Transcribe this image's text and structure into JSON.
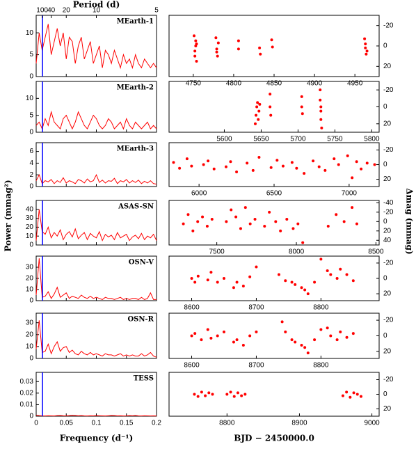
{
  "chart_data": [
    {
      "type": "line",
      "label": "MEarth-1",
      "color": "#ff0000",
      "marker_x": 0.0105,
      "marker_color": "#0000ff",
      "top_axis_label": "Period (d)",
      "top_ticks": [
        100,
        40,
        20,
        10,
        5
      ],
      "x": [
        0,
        0.005,
        0.01,
        0.015,
        0.02,
        0.025,
        0.03,
        0.035,
        0.04,
        0.045,
        0.05,
        0.055,
        0.06,
        0.065,
        0.07,
        0.075,
        0.08,
        0.085,
        0.09,
        0.095,
        0.1,
        0.105,
        0.11,
        0.115,
        0.12,
        0.125,
        0.13,
        0.135,
        0.14,
        0.145,
        0.15,
        0.155,
        0.16,
        0.165,
        0.17,
        0.175,
        0.18,
        0.185,
        0.19,
        0.195,
        0.2
      ],
      "values": [
        3,
        10,
        6,
        9,
        12,
        5,
        8,
        11,
        7,
        10,
        4,
        9,
        8,
        3,
        7,
        9,
        4,
        6,
        8,
        3,
        5,
        7,
        2,
        6,
        5,
        3,
        6,
        4,
        2,
        5,
        3,
        4,
        2,
        5,
        3,
        2,
        4,
        3,
        2,
        3,
        2
      ],
      "xlim": [
        0,
        0.2
      ],
      "xticks": [
        0,
        0.05,
        0.1,
        0.15,
        0.2
      ],
      "ylim": [
        0,
        14
      ],
      "yticks": [
        0,
        5,
        10
      ]
    },
    {
      "type": "line",
      "label": "MEarth-2",
      "color": "#ff0000",
      "marker_x": 0.0105,
      "marker_color": "#0000ff",
      "x": [
        0,
        0.005,
        0.01,
        0.015,
        0.02,
        0.025,
        0.03,
        0.035,
        0.04,
        0.045,
        0.05,
        0.055,
        0.06,
        0.065,
        0.07,
        0.075,
        0.08,
        0.085,
        0.09,
        0.095,
        0.1,
        0.105,
        0.11,
        0.115,
        0.12,
        0.125,
        0.13,
        0.135,
        0.14,
        0.145,
        0.15,
        0.155,
        0.16,
        0.165,
        0.17,
        0.175,
        0.18,
        0.185,
        0.19,
        0.195,
        0.2
      ],
      "values": [
        2,
        3,
        1,
        4,
        2,
        6,
        3,
        2,
        1,
        4,
        5,
        3,
        1,
        3,
        6,
        4,
        2,
        1,
        3,
        5,
        4,
        2,
        1,
        2,
        4,
        3,
        1,
        2,
        3,
        1,
        4,
        2,
        1,
        3,
        2,
        1,
        2,
        3,
        1,
        2,
        1
      ],
      "xlim": [
        0,
        0.2
      ],
      "xticks": [
        0,
        0.05,
        0.1,
        0.15,
        0.2
      ],
      "ylim": [
        0,
        15
      ],
      "yticks": [
        0,
        5,
        10
      ]
    },
    {
      "type": "line",
      "label": "MEarth-3",
      "color": "#ff0000",
      "marker_x": 0.0105,
      "marker_color": "#0000ff",
      "x": [
        0,
        0.005,
        0.01,
        0.015,
        0.02,
        0.025,
        0.03,
        0.035,
        0.04,
        0.045,
        0.05,
        0.055,
        0.06,
        0.065,
        0.07,
        0.075,
        0.08,
        0.085,
        0.09,
        0.095,
        0.1,
        0.105,
        0.11,
        0.115,
        0.12,
        0.125,
        0.13,
        0.135,
        0.14,
        0.145,
        0.15,
        0.155,
        0.16,
        0.165,
        0.17,
        0.175,
        0.18,
        0.185,
        0.19,
        0.195,
        0.2
      ],
      "values": [
        1,
        2,
        0.5,
        1,
        0.8,
        1.2,
        0.5,
        1,
        0.7,
        1.5,
        0.6,
        1,
        0.8,
        0.5,
        1.2,
        1,
        0.6,
        1.3,
        0.8,
        1,
        2,
        0.7,
        1.1,
        0.6,
        1,
        0.9,
        1.4,
        0.5,
        1,
        0.8,
        1.2,
        0.6,
        1,
        0.7,
        1.1,
        0.5,
        0.9,
        0.6,
        1,
        0.5,
        0.4
      ],
      "xlim": [
        0,
        0.2
      ],
      "xticks": [
        0,
        0.05,
        0.1,
        0.15,
        0.2
      ],
      "ylim": [
        0,
        7.5
      ],
      "yticks": [
        0,
        2,
        4,
        6
      ]
    },
    {
      "type": "line",
      "label": "ASAS-SN",
      "color": "#ff0000",
      "marker_x": 0.0105,
      "marker_color": "#0000ff",
      "ylabel": "Power (mmag²)",
      "x": [
        0,
        0.005,
        0.01,
        0.015,
        0.02,
        0.025,
        0.03,
        0.035,
        0.04,
        0.045,
        0.05,
        0.055,
        0.06,
        0.065,
        0.07,
        0.075,
        0.08,
        0.085,
        0.09,
        0.095,
        0.1,
        0.105,
        0.11,
        0.115,
        0.12,
        0.125,
        0.13,
        0.135,
        0.14,
        0.145,
        0.15,
        0.155,
        0.16,
        0.165,
        0.17,
        0.175,
        0.18,
        0.185,
        0.19,
        0.195,
        0.2
      ],
      "values": [
        5,
        40,
        15,
        12,
        20,
        8,
        14,
        10,
        17,
        6,
        12,
        15,
        9,
        18,
        7,
        11,
        14,
        6,
        13,
        10,
        8,
        15,
        5,
        12,
        9,
        11,
        6,
        14,
        8,
        10,
        12,
        5,
        9,
        11,
        7,
        13,
        6,
        10,
        8,
        12,
        5
      ],
      "xlim": [
        0,
        0.2
      ],
      "xticks": [
        0,
        0.05,
        0.1,
        0.15,
        0.2
      ],
      "ylim": [
        0,
        50
      ],
      "yticks": [
        0,
        10,
        20,
        30,
        40
      ]
    },
    {
      "type": "line",
      "label": "OSN-V",
      "color": "#ff0000",
      "marker_x": 0.0105,
      "marker_color": "#0000ff",
      "x": [
        0,
        0.005,
        0.01,
        0.015,
        0.02,
        0.025,
        0.03,
        0.035,
        0.04,
        0.045,
        0.05,
        0.055,
        0.06,
        0.065,
        0.07,
        0.075,
        0.08,
        0.085,
        0.09,
        0.095,
        0.1,
        0.105,
        0.11,
        0.115,
        0.12,
        0.125,
        0.13,
        0.135,
        0.14,
        0.145,
        0.15,
        0.155,
        0.16,
        0.165,
        0.17,
        0.175,
        0.18,
        0.185,
        0.19,
        0.195,
        0.2
      ],
      "values": [
        5,
        38,
        3,
        4,
        8,
        2,
        6,
        12,
        3,
        5,
        7,
        2,
        4,
        3,
        2,
        5,
        3,
        2,
        4,
        2,
        3,
        2,
        1,
        3,
        2,
        2,
        1,
        2,
        3,
        1,
        2,
        1,
        2,
        2,
        1,
        3,
        1,
        2,
        7,
        1,
        1
      ],
      "xlim": [
        0,
        0.2
      ],
      "xticks": [
        0,
        0.05,
        0.1,
        0.15,
        0.2
      ],
      "ylim": [
        0,
        40
      ],
      "yticks": [
        0,
        10,
        20,
        30
      ]
    },
    {
      "type": "line",
      "label": "OSN-R",
      "color": "#ff0000",
      "marker_x": 0.0105,
      "marker_color": "#0000ff",
      "x": [
        0,
        0.005,
        0.01,
        0.015,
        0.02,
        0.025,
        0.03,
        0.035,
        0.04,
        0.045,
        0.05,
        0.055,
        0.06,
        0.065,
        0.07,
        0.075,
        0.08,
        0.085,
        0.09,
        0.095,
        0.1,
        0.105,
        0.11,
        0.115,
        0.12,
        0.125,
        0.13,
        0.135,
        0.14,
        0.145,
        0.15,
        0.155,
        0.16,
        0.165,
        0.17,
        0.175,
        0.18,
        0.185,
        0.19,
        0.195,
        0.2
      ],
      "values": [
        8,
        32,
        5,
        6,
        12,
        4,
        10,
        14,
        6,
        9,
        10,
        5,
        7,
        4,
        3,
        6,
        4,
        3,
        5,
        3,
        4,
        3,
        2,
        4,
        3,
        3,
        2,
        3,
        4,
        2,
        3,
        2,
        3,
        2,
        2,
        4,
        2,
        3,
        5,
        2,
        1
      ],
      "xlim": [
        0,
        0.2
      ],
      "xticks": [
        0,
        0.05,
        0.1,
        0.15,
        0.2
      ],
      "ylim": [
        0,
        38
      ],
      "yticks": [
        0,
        10,
        20,
        30
      ]
    },
    {
      "type": "line",
      "label": "TESS",
      "color": "#ff0000",
      "marker_x": 0.0105,
      "marker_color": "#0000ff",
      "xlabel": "Frequency (d⁻¹)",
      "x": [
        0,
        0.005,
        0.01,
        0.015,
        0.02,
        0.025,
        0.03,
        0.035,
        0.04,
        0.045,
        0.05,
        0.055,
        0.06,
        0.065,
        0.07,
        0.075,
        0.08,
        0.085,
        0.09,
        0.095,
        0.1,
        0.105,
        0.11,
        0.115,
        0.12,
        0.125,
        0.13,
        0.135,
        0.14,
        0.145,
        0.15,
        0.155,
        0.16,
        0.165,
        0.17,
        0.175,
        0.18,
        0.185,
        0.19,
        0.195,
        0.2
      ],
      "values": [
        0.001,
        0.0005,
        0.0003,
        0.0002,
        0.0004,
        0.0003,
        0.0002,
        0.0005,
        0.0006,
        0.0004,
        0.0003,
        0.0005,
        0.0008,
        0.0006,
        0.0004,
        0.0005,
        0.0003,
        0.0002,
        0.0004,
        0.0003,
        0.0005,
        0.0004,
        0.0003,
        0.0002,
        0.0004,
        0.0006,
        0.0005,
        0.0003,
        0.0004,
        0.0002,
        0.0003,
        0.0005,
        0.0004,
        0.0006,
        0.0003,
        0.0002,
        0.0004,
        0.0003,
        0.0002,
        0.0003,
        0.0002
      ],
      "xlim": [
        0,
        0.2
      ],
      "xticks": [
        0,
        0.05,
        0.1,
        0.15,
        0.2
      ],
      "ylim": [
        0,
        0.038
      ],
      "yticks": [
        0,
        0.01,
        0.02,
        0.03
      ]
    },
    {
      "type": "scatter",
      "color": "#ff0000",
      "x": [
        4751,
        4752,
        4753,
        4754,
        4753,
        4752,
        4754,
        4778,
        4779,
        4780,
        4781,
        4779,
        4806,
        4806,
        4832,
        4833,
        4847,
        4848,
        4962,
        4963,
        4964,
        4963,
        4965
      ],
      "values": [
        -10,
        5,
        -5,
        15,
        0,
        10,
        -2,
        -8,
        3,
        10,
        -3,
        6,
        -5,
        3,
        2,
        8,
        -6,
        1,
        -7,
        2,
        8,
        -2,
        5
      ],
      "xlim": [
        4720,
        4980
      ],
      "xticks": [
        4750,
        4800,
        4850,
        4900,
        4950
      ],
      "ylim": [
        30,
        -30
      ],
      "yticks": [
        -20,
        0,
        20
      ]
    },
    {
      "type": "scatter",
      "color": "#ff0000",
      "x": [
        5642,
        5643,
        5644,
        5645,
        5646,
        5647,
        5648,
        5662,
        5662,
        5663,
        5705,
        5705,
        5706,
        5730,
        5730,
        5731,
        5731,
        5732,
        5731
      ],
      "values": [
        20,
        10,
        0,
        -5,
        15,
        5,
        -3,
        -15,
        0,
        10,
        -12,
        0,
        8,
        -20,
        -8,
        5,
        15,
        25,
        0
      ],
      "xlim": [
        5525,
        5810
      ],
      "xticks": [
        5600,
        5650,
        5700,
        5750,
        5800
      ],
      "ylim": [
        30,
        -30
      ],
      "yticks": [
        -20,
        0,
        20
      ]
    },
    {
      "type": "scatter",
      "color": "#ff0000",
      "x": [
        5830,
        5870,
        5920,
        5950,
        6030,
        6060,
        6100,
        6180,
        6210,
        6250,
        6320,
        6360,
        6400,
        6480,
        6520,
        6560,
        6620,
        6650,
        6700,
        6760,
        6800,
        6840,
        6900,
        6930,
        6990,
        7020,
        7050,
        7080,
        7120,
        7170
      ],
      "values": [
        -3,
        5,
        -8,
        2,
        0,
        -5,
        6,
        3,
        -4,
        10,
        -2,
        8,
        -10,
        4,
        -6,
        2,
        -3,
        5,
        12,
        -5,
        3,
        8,
        -8,
        0,
        -12,
        18,
        -4,
        6,
        -2,
        0
      ],
      "xlim": [
        5800,
        7200
      ],
      "xticks": [
        6000,
        6500,
        7000
      ],
      "ylim": [
        30,
        -30
      ],
      "yticks": [
        -20,
        0,
        20
      ]
    },
    {
      "type": "scatter",
      "color": "#ff0000",
      "ylabel": "Δmag (mmag)",
      "x": [
        7290,
        7320,
        7350,
        7380,
        7410,
        7440,
        7470,
        7560,
        7590,
        7620,
        7650,
        7680,
        7710,
        7740,
        7800,
        7830,
        7870,
        7900,
        7940,
        7980,
        8010,
        8040,
        8200,
        8250,
        8300,
        8350,
        8380
      ],
      "values": [
        5,
        -15,
        20,
        0,
        -10,
        10,
        -5,
        0,
        -25,
        -10,
        15,
        -30,
        5,
        -5,
        10,
        -20,
        0,
        20,
        -5,
        15,
        5,
        45,
        10,
        -15,
        0,
        -30,
        5
      ],
      "xlim": [
        7200,
        8520
      ],
      "xticks": [
        7500,
        8000,
        8500
      ],
      "ylim": [
        50,
        -45
      ],
      "yticks": [
        -40,
        -20,
        0,
        20,
        40
      ]
    },
    {
      "type": "scatter",
      "color": "#ff0000",
      "x": [
        8600,
        8605,
        8610,
        8625,
        8630,
        8640,
        8650,
        8665,
        8670,
        8680,
        8690,
        8700,
        8735,
        8745,
        8755,
        8760,
        8770,
        8775,
        8780,
        8790,
        8800,
        8810,
        8815,
        8825,
        8830,
        8840,
        8850
      ],
      "values": [
        0,
        5,
        -3,
        2,
        -8,
        5,
        0,
        12,
        5,
        10,
        -2,
        -15,
        -5,
        3,
        5,
        8,
        12,
        15,
        20,
        5,
        -25,
        -10,
        -5,
        0,
        -12,
        -5,
        3
      ],
      "xlim": [
        8565,
        8890
      ],
      "xticks": [
        8600,
        8700,
        8800
      ],
      "ylim": [
        29,
        -29
      ],
      "yticks": [
        -20,
        0,
        20
      ]
    },
    {
      "type": "scatter",
      "color": "#ff0000",
      "x": [
        8600,
        8605,
        8615,
        8625,
        8630,
        8640,
        8650,
        8665,
        8670,
        8680,
        8690,
        8700,
        8740,
        8745,
        8755,
        8760,
        8770,
        8775,
        8780,
        8790,
        8800,
        8810,
        8815,
        8825,
        8830,
        8840,
        8850
      ],
      "values": [
        0,
        -3,
        5,
        -8,
        3,
        0,
        -5,
        8,
        5,
        12,
        0,
        -5,
        -18,
        -5,
        5,
        8,
        12,
        15,
        22,
        5,
        -8,
        -10,
        0,
        5,
        -5,
        2,
        -3
      ],
      "xlim": [
        8565,
        8890
      ],
      "xticks": [
        8600,
        8700,
        8800
      ],
      "ylim": [
        29,
        -29
      ],
      "yticks": [
        -20,
        0,
        20
      ]
    },
    {
      "type": "scatter",
      "color": "#ff0000",
      "xlabel": "BJD − 2450000.0",
      "x": [
        8755,
        8760,
        8765,
        8770,
        8775,
        8780,
        8800,
        8805,
        8810,
        8815,
        8820,
        8825,
        8960,
        8965,
        8970,
        8975,
        8980,
        8985
      ],
      "values": [
        0,
        3,
        -3,
        2,
        -2,
        0,
        0,
        -3,
        3,
        -2,
        2,
        0,
        2,
        -3,
        4,
        -2,
        0,
        3
      ],
      "xlim": [
        8720,
        9010
      ],
      "xticks": [
        8800,
        8900,
        9000
      ],
      "ylim": [
        30,
        -30
      ],
      "yticks": [
        -20,
        0,
        20
      ]
    }
  ]
}
